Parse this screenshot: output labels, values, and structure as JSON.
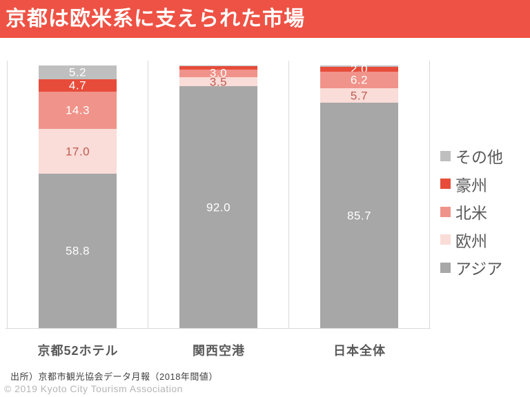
{
  "title": {
    "text": "京都は欧米系に支えられた市場"
  },
  "footer": {
    "source": "出所）京都市観光協会データ月報（2018年間値）",
    "copyright": "© 2019 Kyoto City Tourism Association"
  },
  "colors": {
    "banner": "#ee5244",
    "gridline": "#d9d9d9",
    "category_text": "#595959",
    "legend_text": "#595959"
  },
  "chart_data": {
    "type": "bar",
    "subtype": "100%-stacked-column",
    "title": "",
    "xlabel": "",
    "ylabel": "",
    "ylim": [
      0,
      100
    ],
    "grid": "vertical category separators only, no y-axis labels",
    "legend_position": "right",
    "legend_order_top_to_bottom": [
      "その他",
      "豪州",
      "北米",
      "欧州",
      "アジア"
    ],
    "categories": [
      "京都52ホテル",
      "関西空港",
      "日本全体"
    ],
    "series": [
      {
        "name": "その他",
        "color": "#bfbfbf",
        "label_color": "#ffffff",
        "values": [
          5.2,
          0.2,
          0.4
        ],
        "labels": [
          "5.2",
          "",
          ""
        ]
      },
      {
        "name": "豪州",
        "color": "#e74c3a",
        "label_color": "#ffffff",
        "values": [
          4.7,
          1.3,
          2.0
        ],
        "labels": [
          "4.7",
          "",
          "2.0"
        ]
      },
      {
        "name": "北米",
        "color": "#f0938a",
        "label_color": "#ffffff",
        "values": [
          14.3,
          3.0,
          6.2
        ],
        "labels": [
          "14.3",
          "3.0",
          "6.2"
        ]
      },
      {
        "name": "欧州",
        "color": "#fadcd8",
        "label_color": "#c05a50",
        "values": [
          17.0,
          3.5,
          5.7
        ],
        "labels": [
          "17.0",
          "3.5",
          "5.7"
        ]
      },
      {
        "name": "アジア",
        "color": "#a7a7a7",
        "label_color": "#ffffff",
        "values": [
          58.8,
          92.0,
          85.7
        ],
        "labels": [
          "58.8",
          "92.0",
          "85.7"
        ]
      }
    ],
    "note": "series listed in stacking order from top of bar to bottom; unlabeled thin segments estimated from pixels"
  }
}
